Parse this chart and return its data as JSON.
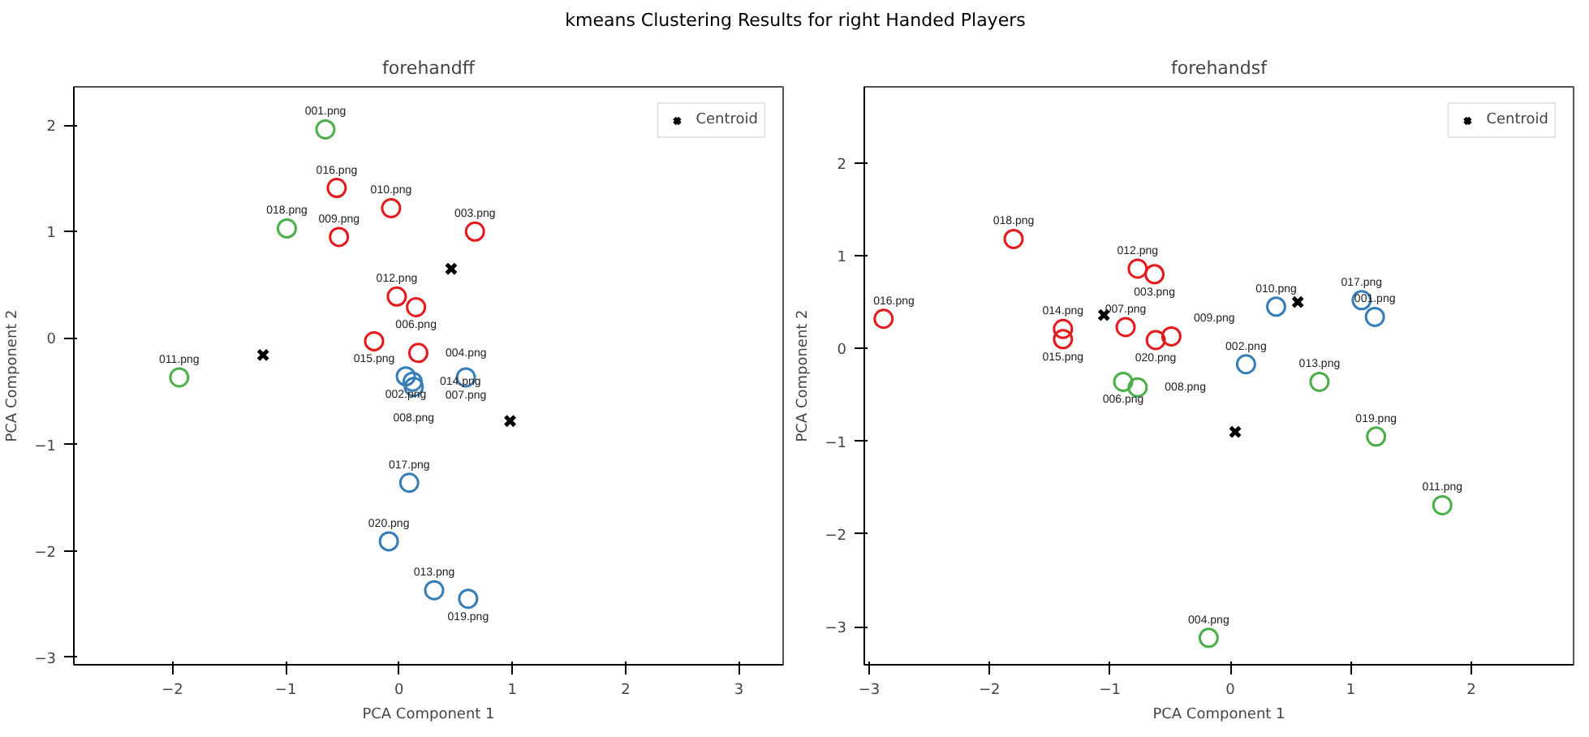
{
  "chart_data": [
    {
      "type": "scatter",
      "title": "forehandff",
      "xlabel": "PCA Component 1",
      "ylabel": "PCA Component 2",
      "xlim": [
        -2.87,
        3.39
      ],
      "ylim": [
        -3.07,
        2.36
      ],
      "xticks": [
        -2,
        -1,
        0,
        1,
        2,
        3
      ],
      "yticks": [
        -3,
        -2,
        -1,
        0,
        1,
        2
      ],
      "grid": false,
      "legend": "top right",
      "marker": "circle",
      "series": [
        {
          "color": "#4daf4a",
          "x": [
            -0.65,
            -0.99,
            -1.94
          ],
          "values": [
            1.96,
            1.03,
            -0.37
          ]
        },
        {
          "color": "#e41a1c",
          "x": [
            -0.55,
            -0.07,
            0.67,
            -0.53,
            -0.02,
            0.15,
            -0.22,
            0.17
          ],
          "values": [
            1.41,
            1.22,
            1.0,
            0.95,
            0.39,
            0.29,
            -0.03,
            -0.14
          ]
        },
        {
          "color": "#377eb8",
          "x": [
            0.06,
            0.12,
            0.13,
            0.59,
            0.09,
            -0.09,
            0.31,
            0.61
          ],
          "values": [
            -0.36,
            -0.41,
            -0.46,
            -0.37,
            -1.36,
            -1.91,
            -2.37,
            -2.45
          ]
        },
        {
          "name": "Centroid",
          "color": "#000000",
          "marker": "cross",
          "x": [
            -1.2,
            0.46,
            0.98
          ],
          "values": [
            -0.16,
            0.65,
            -0.78
          ]
        }
      ],
      "annotations": [
        "kmeans Clustering Results for right Handed Players",
        {
          "text": "001.png",
          "x": -0.65,
          "y": 1.96
        },
        {
          "text": "018.png",
          "x": -0.99,
          "y": 1.03
        },
        {
          "text": "011.png",
          "x": -1.94,
          "y": -0.37
        },
        {
          "text": "016.png",
          "x": -0.55,
          "y": 1.41
        },
        {
          "text": "010.png",
          "x": -0.07,
          "y": 1.22
        },
        {
          "text": "003.png",
          "x": 0.67,
          "y": 1.0
        },
        {
          "text": "009.png",
          "x": -0.53,
          "y": 0.95
        },
        {
          "text": "012.png",
          "x": -0.02,
          "y": 0.39
        },
        {
          "text": "006.png",
          "x": 0.15,
          "y": 0.29
        },
        {
          "text": "015.png",
          "x": -0.22,
          "y": -0.03
        },
        {
          "text": "004.png",
          "x": 0.17,
          "y": -0.14
        },
        {
          "text": "002.png",
          "x": 0.06,
          "y": -0.36
        },
        {
          "text": "014.png",
          "x": 0.12,
          "y": -0.41
        },
        {
          "text": "008.png",
          "x": 0.13,
          "y": -0.46
        },
        {
          "text": "007.png",
          "x": 0.59,
          "y": -0.37
        },
        {
          "text": "017.png",
          "x": 0.09,
          "y": -1.36
        },
        {
          "text": "020.png",
          "x": -0.09,
          "y": -1.91
        },
        {
          "text": "013.png",
          "x": 0.31,
          "y": -2.37
        },
        {
          "text": "019.png",
          "x": 0.61,
          "y": -2.45
        }
      ]
    },
    {
      "type": "scatter",
      "title": "forehandsf",
      "xlabel": "PCA Component 1",
      "ylabel": "PCA Component 2",
      "xlim": [
        -3.04,
        2.85
      ],
      "ylim": [
        -3.41,
        2.82
      ],
      "xticks": [
        -3,
        -2,
        -1,
        0,
        1,
        2
      ],
      "yticks": [
        -3,
        -2,
        -1,
        0,
        1,
        2
      ],
      "grid": false,
      "legend": "top right",
      "marker": "circle",
      "series": [
        {
          "color": "#e41a1c",
          "x": [
            -1.8,
            -2.88,
            -0.77,
            -0.63,
            -1.39,
            -1.39,
            -0.87,
            -0.62,
            -0.49
          ],
          "values": [
            1.18,
            0.32,
            0.86,
            0.8,
            0.21,
            0.1,
            0.23,
            0.09,
            0.13
          ]
        },
        {
          "color": "#377eb8",
          "x": [
            0.38,
            1.09,
            1.2,
            0.13
          ],
          "values": [
            0.45,
            0.52,
            0.34,
            -0.17
          ]
        },
        {
          "color": "#4daf4a",
          "x": [
            -0.89,
            -0.77,
            0.74,
            1.21,
            1.76,
            -0.18
          ],
          "values": [
            -0.36,
            -0.42,
            -0.36,
            -0.95,
            -1.69,
            -3.12
          ]
        },
        {
          "name": "Centroid",
          "color": "#000000",
          "marker": "cross",
          "x": [
            -1.05,
            0.56,
            0.04
          ],
          "values": [
            0.36,
            0.5,
            -0.9
          ]
        }
      ],
      "annotations": [
        {
          "text": "018.png",
          "x": -1.8,
          "y": 1.18
        },
        {
          "text": "016.png",
          "x": -2.88,
          "y": 0.32
        },
        {
          "text": "012.png",
          "x": -0.77,
          "y": 0.86
        },
        {
          "text": "003.png",
          "x": -0.63,
          "y": 0.8
        },
        {
          "text": "014.png",
          "x": -1.39,
          "y": 0.21
        },
        {
          "text": "015.png",
          "x": -1.39,
          "y": 0.1
        },
        {
          "text": "007.png",
          "x": -0.87,
          "y": 0.23
        },
        {
          "text": "020.png",
          "x": -0.62,
          "y": 0.09
        },
        {
          "text": "009.png",
          "x": -0.49,
          "y": 0.13
        },
        {
          "text": "010.png",
          "x": 0.38,
          "y": 0.45
        },
        {
          "text": "017.png",
          "x": 1.09,
          "y": 0.52
        },
        {
          "text": "001.png",
          "x": 1.2,
          "y": 0.34
        },
        {
          "text": "002.png",
          "x": 0.13,
          "y": -0.17
        },
        {
          "text": "006.png",
          "x": -0.89,
          "y": -0.36
        },
        {
          "text": "008.png",
          "x": -0.77,
          "y": -0.42
        },
        {
          "text": "013.png",
          "x": 0.74,
          "y": -0.36
        },
        {
          "text": "019.png",
          "x": 1.21,
          "y": -0.95
        },
        {
          "text": "011.png",
          "x": 1.76,
          "y": -1.69
        },
        {
          "text": "004.png",
          "x": -0.18,
          "y": -3.12
        }
      ]
    }
  ]
}
